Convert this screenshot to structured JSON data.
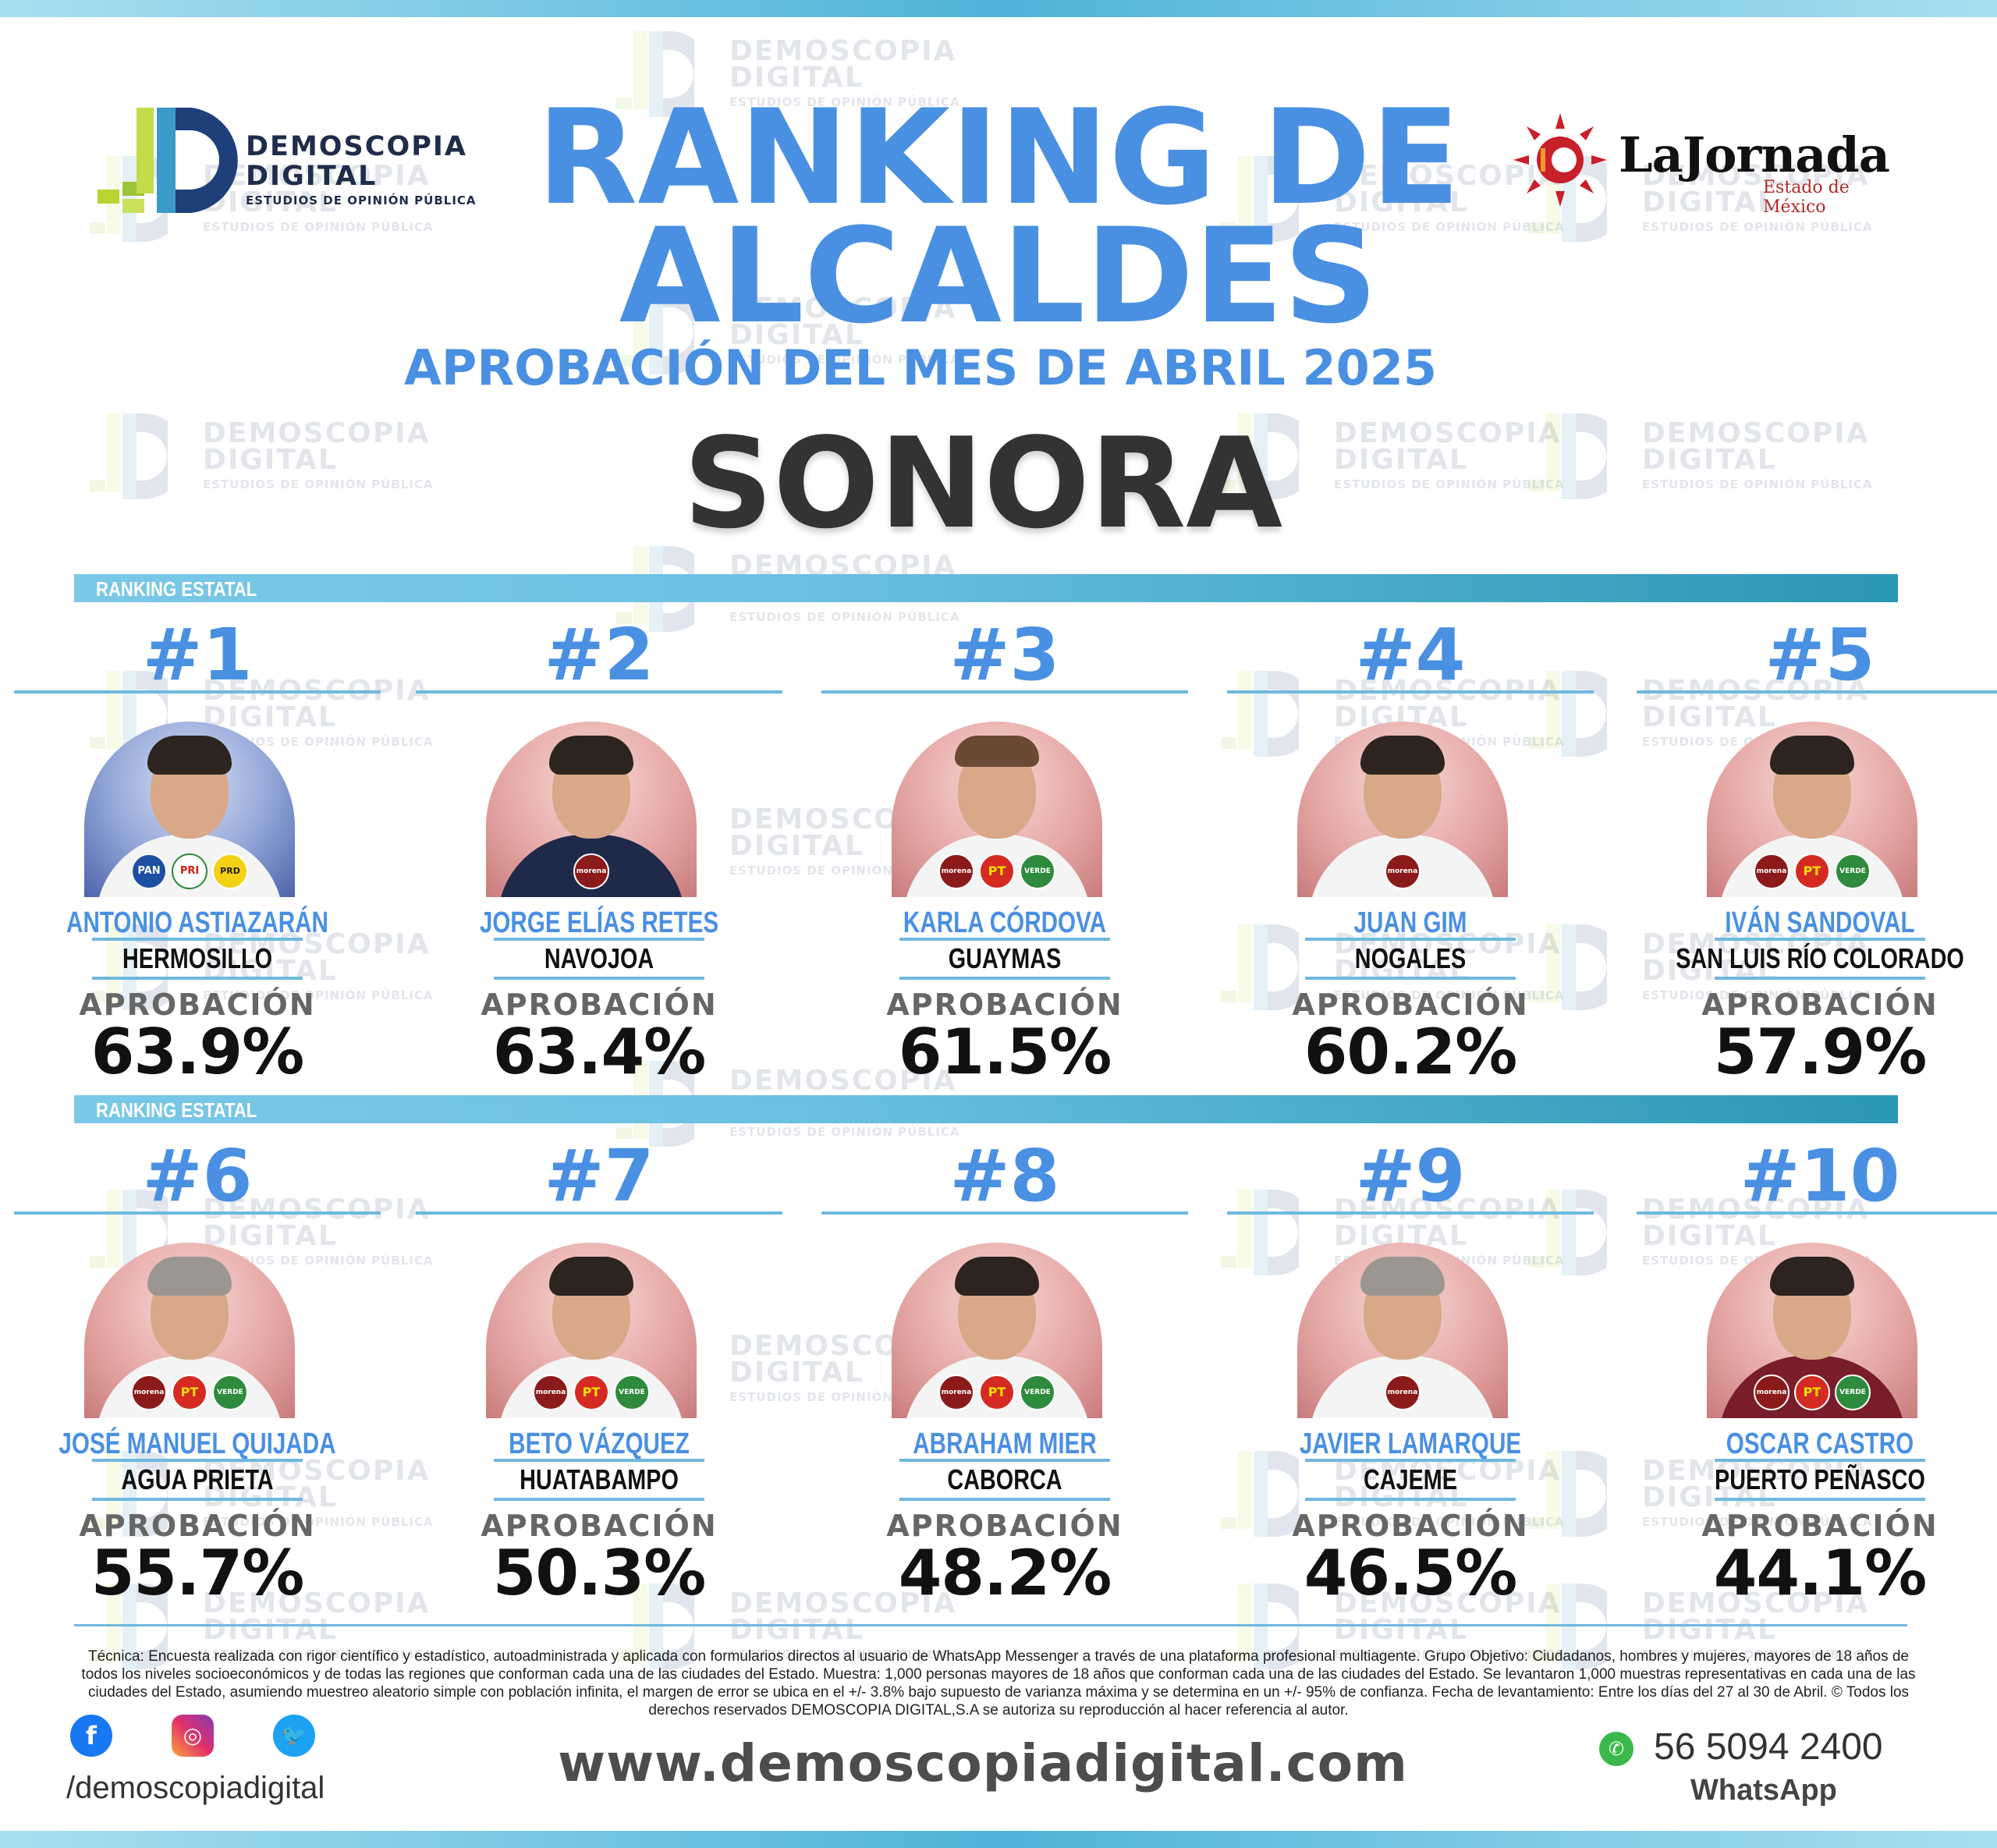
{
  "header": {
    "logo_left": {
      "line1": "DEMOSCOPIA",
      "line2": "DIGITAL",
      "line3": "ESTUDIOS DE OPINIÓN PÚBLICA"
    },
    "logo_right": {
      "name": "LaJornada",
      "sub": "Estado de México"
    },
    "title_line1": "RANKING DE",
    "title_line2": "ALCALDES",
    "subtitle": "APROBACIÓN DEL MES DE ABRIL 2025",
    "state": "SONORA"
  },
  "section_label": "RANKING ESTATAL",
  "watermark": {
    "line1": "DEMOSCOPIA",
    "line2": "DIGITAL",
    "line3": "ESTUDIOS DE OPINIÓN PÚBLICA"
  },
  "approval_label": "APROBACIÓN",
  "ranking": [
    {
      "rank": "#1",
      "name": "ANTONIO ASTIAZARÁN",
      "city": "HERMOSILLO",
      "approval": "63.9%",
      "parties": [
        "PAN",
        "PRI",
        "PRD"
      ]
    },
    {
      "rank": "#2",
      "name": "JORGE ELÍAS RETES",
      "city": "NAVOJOA",
      "approval": "63.4%",
      "parties": [
        "morena"
      ]
    },
    {
      "rank": "#3",
      "name": "KARLA CÓRDOVA",
      "city": "GUAYMAS",
      "approval": "61.5%",
      "parties": [
        "morena",
        "PT",
        "VERDE"
      ]
    },
    {
      "rank": "#4",
      "name": "JUAN GIM",
      "city": "NOGALES",
      "approval": "60.2%",
      "parties": [
        "morena"
      ]
    },
    {
      "rank": "#5",
      "name": "IVÁN SANDOVAL",
      "city": "SAN LUIS RÍO COLORADO",
      "approval": "57.9%",
      "parties": [
        "morena",
        "PT",
        "VERDE"
      ]
    },
    {
      "rank": "#6",
      "name": "JOSÉ MANUEL QUIJADA",
      "city": "AGUA PRIETA",
      "approval": "55.7%",
      "parties": [
        "morena",
        "PT",
        "VERDE"
      ]
    },
    {
      "rank": "#7",
      "name": "BETO VÁZQUEZ",
      "city": "HUATABAMPO",
      "approval": "50.3%",
      "parties": [
        "morena",
        "PT",
        "VERDE"
      ]
    },
    {
      "rank": "#8",
      "name": "ABRAHAM MIER",
      "city": "CABORCA",
      "approval": "48.2%",
      "parties": [
        "morena",
        "PT",
        "VERDE"
      ]
    },
    {
      "rank": "#9",
      "name": "JAVIER LAMARQUE",
      "city": "CAJEME",
      "approval": "46.5%",
      "parties": [
        "morena"
      ]
    },
    {
      "rank": "#10",
      "name": "OSCAR CASTRO",
      "city": "PUERTO PEÑASCO",
      "approval": "44.1%",
      "parties": [
        "morena",
        "PT",
        "VERDE"
      ]
    }
  ],
  "footnote": "Técnica: Encuesta realizada con rigor científico y estadístico, autoadministrada y aplicada con formularios directos al usuario de WhatsApp Messenger a través de una plataforma profesional multiagente. Grupo Objetivo: Ciudadanos, hombres y mujeres, mayores de 18 años de todos los niveles socioeconómicos y de todas las regiones que conforman cada una de las ciudades del Estado. Muestra: 1,000 personas mayores de 18 años que conforman cada una de las ciudades del Estado. Se levantaron 1,000 muestras representativas en cada una de las ciudades del Estado, asumiendo muestreo aleatorio simple con población infinita, el margen de error se ubica en el +/- 3.8% bajo supuesto de varianza máxima y se determina en un +/- 95% de confianza. Fecha de levantamiento: Entre los días del 27 al 30 de Abril. © Todos los derechos reservados DEMOSCOPIA DIGITAL,S.A se autoriza su reproducción al hacer referencia al autor.",
  "footer": {
    "social_handle": "/demoscopiadigital",
    "website": "www.demoscopiadigital.com",
    "whatsapp_number": "56 5094 2400",
    "whatsapp_label": "WhatsApp"
  },
  "colors": {
    "accent": "#4a90e2",
    "bar": "#6fb8de",
    "dark": "#333333"
  }
}
